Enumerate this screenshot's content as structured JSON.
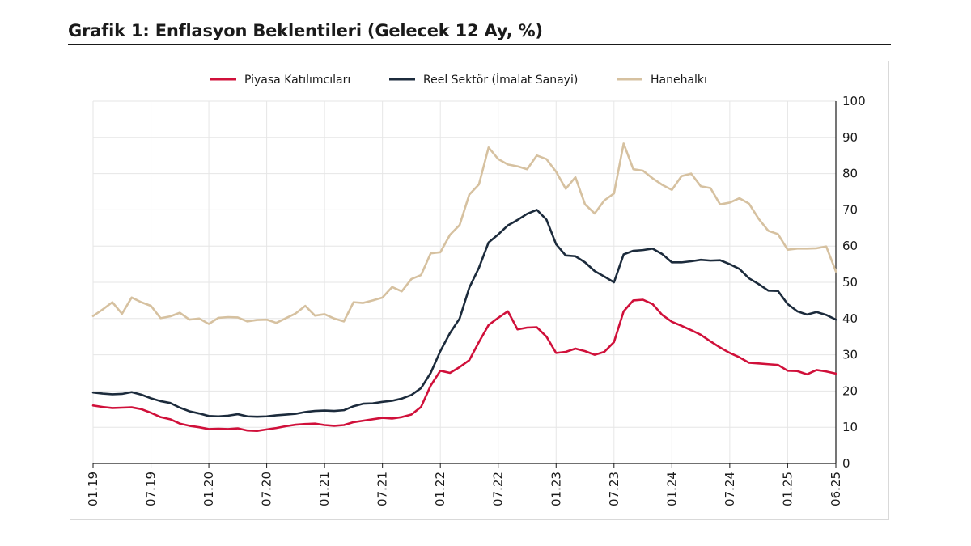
{
  "page": {
    "title": "Grafik 1: Enflasyon Beklentileri (Gelecek 12 Ay, %)"
  },
  "chart_data": {
    "type": "line",
    "title": "Grafik 1: Enflasyon Beklentileri (Gelecek 12 Ay, %)",
    "xlabel": "",
    "ylabel": "",
    "ylim": [
      0,
      100
    ],
    "yticks": [
      0,
      10,
      20,
      30,
      40,
      50,
      60,
      70,
      80,
      90,
      100
    ],
    "y_axis_side": "right",
    "grid": true,
    "legend_position": "top",
    "x_ticks": [
      "01.19",
      "07.19",
      "01.20",
      "07.20",
      "01.21",
      "07.21",
      "01.22",
      "07.22",
      "01.23",
      "07.23",
      "01.24",
      "07.24",
      "01.25",
      "06.25"
    ],
    "x": [
      "01.19",
      "02.19",
      "03.19",
      "04.19",
      "05.19",
      "06.19",
      "07.19",
      "08.19",
      "09.19",
      "10.19",
      "11.19",
      "12.19",
      "01.20",
      "02.20",
      "03.20",
      "04.20",
      "05.20",
      "06.20",
      "07.20",
      "08.20",
      "09.20",
      "10.20",
      "11.20",
      "12.20",
      "01.21",
      "02.21",
      "03.21",
      "04.21",
      "05.21",
      "06.21",
      "07.21",
      "08.21",
      "09.21",
      "10.21",
      "11.21",
      "12.21",
      "01.22",
      "02.22",
      "03.22",
      "04.22",
      "05.22",
      "06.22",
      "07.22",
      "08.22",
      "09.22",
      "10.22",
      "11.22",
      "12.22",
      "01.23",
      "02.23",
      "03.23",
      "04.23",
      "05.23",
      "06.23",
      "07.23",
      "08.23",
      "09.23",
      "10.23",
      "11.23",
      "12.23",
      "01.24",
      "02.24",
      "03.24",
      "04.24",
      "05.24",
      "06.24",
      "07.24",
      "08.24",
      "09.24",
      "10.24",
      "11.24",
      "12.24",
      "01.25",
      "02.25",
      "03.25",
      "04.25",
      "05.25",
      "06.25"
    ],
    "series": [
      {
        "name": "Piyasa Katılımcıları",
        "color": "#d0103a",
        "values": [
          16.0,
          15.6,
          15.3,
          15.4,
          15.5,
          15.0,
          14.0,
          12.8,
          12.2,
          11.0,
          10.4,
          10.0,
          9.5,
          9.6,
          9.5,
          9.7,
          9.1,
          9.0,
          9.4,
          9.8,
          10.3,
          10.7,
          10.9,
          11.0,
          10.6,
          10.4,
          10.6,
          11.4,
          11.8,
          12.2,
          12.6,
          12.4,
          12.8,
          13.5,
          15.6,
          21.5,
          25.6,
          25.0,
          26.6,
          28.5,
          33.5,
          38.2,
          40.2,
          42.0,
          37.0,
          37.5,
          37.6,
          35.0,
          30.5,
          30.8,
          31.7,
          31.0,
          30.0,
          30.8,
          33.5,
          42.0,
          45.0,
          45.2,
          44.0,
          41.0,
          39.1,
          38.0,
          36.8,
          35.5,
          33.7,
          32.0,
          30.5,
          29.3,
          27.8,
          27.6,
          27.4,
          27.2,
          25.6,
          25.5,
          24.6,
          25.8,
          25.4,
          24.8
        ]
      },
      {
        "name": "Reel Sektör (İmalat Sanayi)",
        "color": "#1c2b3c",
        "values": [
          19.6,
          19.3,
          19.1,
          19.2,
          19.7,
          19.0,
          18.0,
          17.2,
          16.7,
          15.4,
          14.4,
          13.8,
          13.1,
          13.0,
          13.2,
          13.6,
          13.0,
          12.9,
          13.0,
          13.3,
          13.5,
          13.7,
          14.2,
          14.5,
          14.6,
          14.5,
          14.7,
          15.8,
          16.5,
          16.6,
          17.0,
          17.3,
          17.9,
          18.9,
          20.8,
          25.0,
          31.0,
          36.0,
          40.0,
          48.5,
          54.0,
          61.0,
          63.2,
          65.7,
          67.2,
          68.9,
          70.0,
          67.3,
          60.5,
          57.4,
          57.2,
          55.5,
          53.1,
          51.6,
          50.0,
          57.7,
          58.7,
          58.9,
          59.3,
          57.8,
          55.5,
          55.5,
          55.8,
          56.2,
          56.0,
          56.1,
          55.0,
          53.7,
          51.1,
          49.5,
          47.7,
          47.6,
          44.0,
          42.0,
          41.1,
          41.8,
          41.0,
          39.7
        ]
      },
      {
        "name": "Hanehalkı",
        "color": "#d6c1a0",
        "values": [
          40.7,
          42.5,
          44.5,
          41.3,
          45.8,
          44.5,
          43.5,
          40.1,
          40.6,
          41.6,
          39.7,
          40.0,
          38.5,
          40.2,
          40.4,
          40.3,
          39.2,
          39.6,
          39.7,
          38.8,
          40.1,
          41.4,
          43.5,
          40.8,
          41.2,
          40.0,
          39.2,
          44.5,
          44.3,
          45.0,
          45.8,
          48.7,
          47.5,
          50.9,
          52.0,
          58.0,
          58.3,
          63.1,
          65.8,
          74.2,
          77.0,
          87.2,
          84.0,
          82.5,
          82.0,
          81.2,
          85.0,
          84.0,
          80.5,
          75.8,
          79.0,
          71.5,
          69.0,
          72.6,
          74.5,
          88.3,
          81.2,
          80.8,
          78.7,
          76.9,
          75.5,
          79.3,
          80.0,
          76.5,
          76.0,
          71.5,
          72.0,
          73.2,
          71.7,
          67.5,
          64.2,
          63.3,
          59.0,
          59.3,
          59.3,
          59.4,
          59.9,
          53.0
        ]
      }
    ]
  }
}
